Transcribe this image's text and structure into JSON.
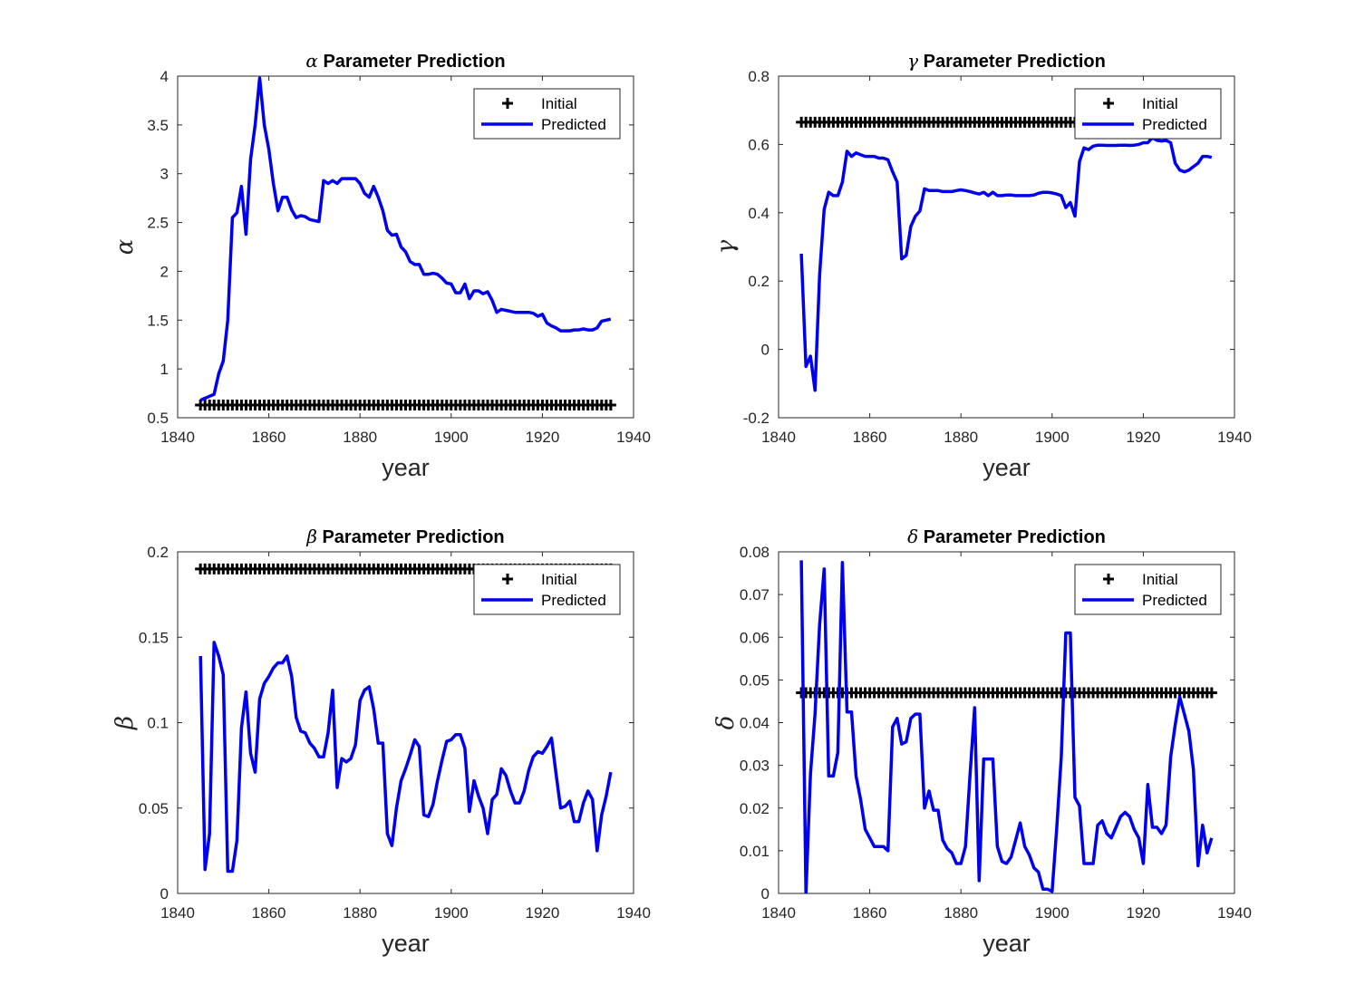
{
  "figure": {
    "colors": {
      "predicted": "#0000ee",
      "initial": "#000000",
      "axis": "#262626"
    }
  },
  "chart_data": [
    {
      "type": "line",
      "id": "alpha",
      "title_symbol": "α",
      "title": "Parameter Prediction",
      "xlabel": "year",
      "ylabel": "α",
      "xlim": [
        1840,
        1940
      ],
      "ylim": [
        0.5,
        4
      ],
      "xticks": [
        "1840",
        "1860",
        "1880",
        "1900",
        "1920",
        "1940"
      ],
      "yticks": [
        "0.5",
        "1",
        "1.5",
        "2",
        "2.5",
        "3",
        "3.5",
        "4"
      ],
      "legend": {
        "position": "top-right",
        "entries": [
          "Initial",
          "Predicted"
        ]
      },
      "series": [
        {
          "name": "Initial",
          "style": "markers-plus",
          "x_start": 1845,
          "x_end": 1935,
          "value": 0.63
        },
        {
          "name": "Predicted",
          "style": "line",
          "x": [
            1845,
            1846,
            1847,
            1848,
            1849,
            1850,
            1851,
            1852,
            1853,
            1854,
            1855,
            1856,
            1857,
            1858,
            1859,
            1860,
            1861,
            1862,
            1863,
            1864,
            1865,
            1866,
            1867,
            1868,
            1869,
            1870,
            1871,
            1872,
            1873,
            1874,
            1875,
            1876,
            1877,
            1878,
            1879,
            1880,
            1881,
            1882,
            1883,
            1884,
            1885,
            1886,
            1887,
            1888,
            1889,
            1890,
            1891,
            1892,
            1893,
            1894,
            1895,
            1896,
            1897,
            1898,
            1899,
            1900,
            1901,
            1902,
            1903,
            1904,
            1905,
            1906,
            1907,
            1908,
            1909,
            1910,
            1911,
            1912,
            1913,
            1914,
            1915,
            1916,
            1917,
            1918,
            1919,
            1920,
            1921,
            1922,
            1923,
            1924,
            1925,
            1926,
            1927,
            1928,
            1929,
            1930,
            1931,
            1932,
            1933,
            1934,
            1935
          ],
          "y": [
            0.68,
            0.7,
            0.72,
            0.74,
            0.95,
            1.08,
            1.5,
            2.55,
            2.6,
            2.87,
            2.38,
            3.15,
            3.5,
            3.98,
            3.5,
            3.25,
            2.9,
            2.62,
            2.76,
            2.76,
            2.63,
            2.55,
            2.57,
            2.56,
            2.53,
            2.52,
            2.51,
            2.93,
            2.9,
            2.93,
            2.9,
            2.95,
            2.95,
            2.95,
            2.95,
            2.9,
            2.8,
            2.76,
            2.87,
            2.76,
            2.62,
            2.42,
            2.37,
            2.38,
            2.25,
            2.2,
            2.1,
            2.07,
            2.07,
            1.97,
            1.97,
            1.98,
            1.97,
            1.93,
            1.88,
            1.87,
            1.78,
            1.78,
            1.87,
            1.72,
            1.8,
            1.8,
            1.77,
            1.79,
            1.7,
            1.58,
            1.61,
            1.6,
            1.59,
            1.58,
            1.58,
            1.58,
            1.58,
            1.57,
            1.54,
            1.56,
            1.47,
            1.44,
            1.42,
            1.39,
            1.39,
            1.39,
            1.4,
            1.4,
            1.41,
            1.4,
            1.4,
            1.42,
            1.49,
            1.5,
            1.51
          ]
        }
      ]
    },
    {
      "type": "line",
      "id": "gamma",
      "title_symbol": "γ",
      "title": "Parameter Prediction",
      "xlabel": "year",
      "ylabel": "γ",
      "xlim": [
        1840,
        1940
      ],
      "ylim": [
        -0.2,
        0.8
      ],
      "xticks": [
        "1840",
        "1860",
        "1880",
        "1900",
        "1920",
        "1940"
      ],
      "yticks": [
        "-0.2",
        "0",
        "0.2",
        "0.4",
        "0.6",
        "0.8"
      ],
      "legend": {
        "position": "top-right",
        "entries": [
          "Initial",
          "Predicted"
        ]
      },
      "series": [
        {
          "name": "Initial",
          "style": "markers-plus",
          "x_start": 1845,
          "x_end": 1935,
          "value": 0.665
        },
        {
          "name": "Predicted",
          "style": "line",
          "x": [
            1845,
            1846,
            1847,
            1848,
            1849,
            1850,
            1851,
            1852,
            1853,
            1854,
            1855,
            1856,
            1857,
            1858,
            1859,
            1860,
            1861,
            1862,
            1863,
            1864,
            1865,
            1866,
            1867,
            1868,
            1869,
            1870,
            1871,
            1872,
            1873,
            1874,
            1875,
            1876,
            1877,
            1878,
            1879,
            1880,
            1881,
            1882,
            1883,
            1884,
            1885,
            1886,
            1887,
            1888,
            1889,
            1890,
            1891,
            1892,
            1893,
            1894,
            1895,
            1896,
            1897,
            1898,
            1899,
            1900,
            1901,
            1902,
            1903,
            1904,
            1905,
            1906,
            1907,
            1908,
            1909,
            1910,
            1911,
            1912,
            1913,
            1914,
            1915,
            1916,
            1917,
            1918,
            1919,
            1920,
            1921,
            1922,
            1923,
            1924,
            1925,
            1926,
            1927,
            1928,
            1929,
            1930,
            1931,
            1932,
            1933,
            1934,
            1935
          ],
          "y": [
            0.28,
            -0.05,
            -0.02,
            -0.12,
            0.22,
            0.41,
            0.46,
            0.45,
            0.45,
            0.49,
            0.58,
            0.565,
            0.575,
            0.57,
            0.565,
            0.565,
            0.565,
            0.56,
            0.56,
            0.555,
            0.52,
            0.49,
            0.265,
            0.275,
            0.36,
            0.39,
            0.405,
            0.47,
            0.465,
            0.465,
            0.465,
            0.462,
            0.462,
            0.462,
            0.465,
            0.467,
            0.465,
            0.462,
            0.458,
            0.455,
            0.46,
            0.45,
            0.46,
            0.45,
            0.45,
            0.452,
            0.452,
            0.45,
            0.45,
            0.45,
            0.45,
            0.452,
            0.457,
            0.46,
            0.46,
            0.458,
            0.455,
            0.45,
            0.415,
            0.43,
            0.39,
            0.55,
            0.59,
            0.585,
            0.595,
            0.598,
            0.598,
            0.597,
            0.597,
            0.597,
            0.598,
            0.598,
            0.597,
            0.598,
            0.6,
            0.605,
            0.605,
            0.62,
            0.612,
            0.61,
            0.612,
            0.605,
            0.545,
            0.525,
            0.52,
            0.525,
            0.535,
            0.545,
            0.565,
            0.565,
            0.562
          ]
        }
      ]
    },
    {
      "type": "line",
      "id": "beta",
      "title_symbol": "β",
      "title": "Parameter Prediction",
      "xlabel": "year",
      "ylabel": "β",
      "xlim": [
        1840,
        1940
      ],
      "ylim": [
        0,
        0.2
      ],
      "xticks": [
        "1840",
        "1860",
        "1880",
        "1900",
        "1920",
        "1940"
      ],
      "yticks": [
        "0",
        "0.05",
        "0.1",
        "0.15",
        "0.2"
      ],
      "legend": {
        "position": "top-right",
        "entries": [
          "Initial",
          "Predicted"
        ]
      },
      "series": [
        {
          "name": "Initial",
          "style": "markers-plus",
          "x_start": 1845,
          "x_end": 1935,
          "value": 0.19
        },
        {
          "name": "Predicted",
          "style": "line",
          "x": [
            1845,
            1846,
            1847,
            1848,
            1849,
            1850,
            1851,
            1852,
            1853,
            1854,
            1855,
            1856,
            1857,
            1858,
            1859,
            1860,
            1861,
            1862,
            1863,
            1864,
            1865,
            1866,
            1867,
            1868,
            1869,
            1870,
            1871,
            1872,
            1873,
            1874,
            1875,
            1876,
            1877,
            1878,
            1879,
            1880,
            1881,
            1882,
            1883,
            1884,
            1885,
            1886,
            1887,
            1888,
            1889,
            1890,
            1891,
            1892,
            1893,
            1894,
            1895,
            1896,
            1897,
            1898,
            1899,
            1900,
            1901,
            1902,
            1903,
            1904,
            1905,
            1906,
            1907,
            1908,
            1909,
            1910,
            1911,
            1912,
            1913,
            1914,
            1915,
            1916,
            1917,
            1918,
            1919,
            1920,
            1921,
            1922,
            1923,
            1924,
            1925,
            1926,
            1927,
            1928,
            1929,
            1930,
            1931,
            1932,
            1933,
            1934,
            1935
          ],
          "y": [
            0.139,
            0.014,
            0.035,
            0.147,
            0.139,
            0.128,
            0.013,
            0.013,
            0.031,
            0.097,
            0.118,
            0.082,
            0.071,
            0.114,
            0.123,
            0.127,
            0.132,
            0.135,
            0.135,
            0.139,
            0.127,
            0.103,
            0.095,
            0.094,
            0.088,
            0.085,
            0.08,
            0.08,
            0.094,
            0.119,
            0.062,
            0.079,
            0.077,
            0.079,
            0.087,
            0.113,
            0.119,
            0.121,
            0.108,
            0.088,
            0.088,
            0.035,
            0.028,
            0.05,
            0.066,
            0.073,
            0.081,
            0.09,
            0.086,
            0.046,
            0.045,
            0.052,
            0.066,
            0.078,
            0.089,
            0.09,
            0.093,
            0.093,
            0.085,
            0.048,
            0.066,
            0.057,
            0.05,
            0.035,
            0.055,
            0.058,
            0.073,
            0.069,
            0.06,
            0.053,
            0.053,
            0.06,
            0.072,
            0.08,
            0.083,
            0.082,
            0.086,
            0.091,
            0.07,
            0.05,
            0.051,
            0.054,
            0.042,
            0.042,
            0.053,
            0.06,
            0.055,
            0.025,
            0.046,
            0.057,
            0.071
          ]
        }
      ]
    },
    {
      "type": "line",
      "id": "delta",
      "title_symbol": "δ",
      "title": "Parameter Prediction",
      "xlabel": "year",
      "ylabel": "δ",
      "xlim": [
        1840,
        1940
      ],
      "ylim": [
        0,
        0.08
      ],
      "xticks": [
        "1840",
        "1860",
        "1880",
        "1900",
        "1920",
        "1940"
      ],
      "yticks": [
        "0",
        "0.01",
        "0.02",
        "0.03",
        "0.04",
        "0.05",
        "0.06",
        "0.07",
        "0.08"
      ],
      "legend": {
        "position": "top-right",
        "entries": [
          "Initial",
          "Predicted"
        ]
      },
      "series": [
        {
          "name": "Initial",
          "style": "markers-plus",
          "x_start": 1845,
          "x_end": 1935,
          "value": 0.047
        },
        {
          "name": "Predicted",
          "style": "line",
          "x": [
            1845,
            1846,
            1847,
            1848,
            1849,
            1850,
            1851,
            1852,
            1853,
            1854,
            1855,
            1856,
            1857,
            1858,
            1859,
            1860,
            1861,
            1862,
            1863,
            1864,
            1865,
            1866,
            1867,
            1868,
            1869,
            1870,
            1871,
            1872,
            1873,
            1874,
            1875,
            1876,
            1877,
            1878,
            1879,
            1880,
            1881,
            1882,
            1883,
            1884,
            1885,
            1886,
            1887,
            1888,
            1889,
            1890,
            1891,
            1892,
            1893,
            1894,
            1895,
            1896,
            1897,
            1898,
            1899,
            1900,
            1901,
            1902,
            1903,
            1904,
            1905,
            1906,
            1907,
            1908,
            1909,
            1910,
            1911,
            1912,
            1913,
            1914,
            1915,
            1916,
            1917,
            1918,
            1919,
            1920,
            1921,
            1922,
            1923,
            1924,
            1925,
            1926,
            1927,
            1928,
            1929,
            1930,
            1931,
            1932,
            1933,
            1934,
            1935
          ],
          "y": [
            0.078,
            0.0,
            0.028,
            0.042,
            0.063,
            0.076,
            0.0275,
            0.0275,
            0.033,
            0.0775,
            0.0425,
            0.0425,
            0.0275,
            0.022,
            0.015,
            0.013,
            0.011,
            0.011,
            0.011,
            0.01,
            0.039,
            0.041,
            0.035,
            0.0355,
            0.041,
            0.042,
            0.042,
            0.02,
            0.024,
            0.0195,
            0.0195,
            0.0125,
            0.0105,
            0.0095,
            0.007,
            0.007,
            0.011,
            0.028,
            0.0435,
            0.003,
            0.0315,
            0.0315,
            0.0315,
            0.011,
            0.0075,
            0.007,
            0.0085,
            0.0125,
            0.0165,
            0.011,
            0.009,
            0.006,
            0.005,
            0.001,
            0.001,
            0.0005,
            0.015,
            0.032,
            0.061,
            0.061,
            0.0225,
            0.0205,
            0.007,
            0.007,
            0.007,
            0.016,
            0.017,
            0.014,
            0.013,
            0.0155,
            0.018,
            0.019,
            0.018,
            0.015,
            0.013,
            0.007,
            0.0255,
            0.0155,
            0.0155,
            0.014,
            0.016,
            0.032,
            0.0395,
            0.046,
            0.042,
            0.038,
            0.029,
            0.0065,
            0.016,
            0.0095,
            0.013
          ]
        }
      ]
    }
  ]
}
